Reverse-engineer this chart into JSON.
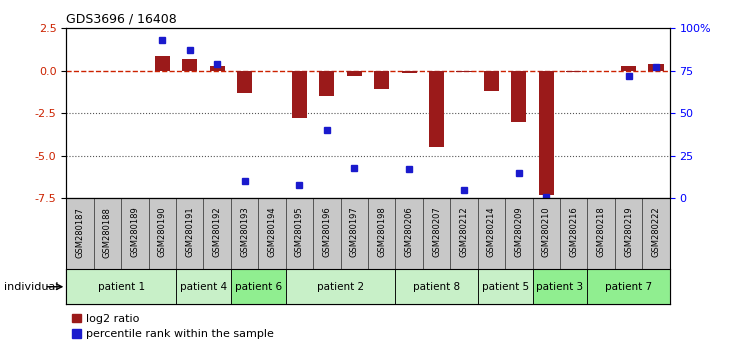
{
  "title": "GDS3696 / 16408",
  "samples": [
    "GSM280187",
    "GSM280188",
    "GSM280189",
    "GSM280190",
    "GSM280191",
    "GSM280192",
    "GSM280193",
    "GSM280194",
    "GSM280195",
    "GSM280196",
    "GSM280197",
    "GSM280198",
    "GSM280206",
    "GSM280207",
    "GSM280212",
    "GSM280214",
    "GSM280209",
    "GSM280210",
    "GSM280216",
    "GSM280218",
    "GSM280219",
    "GSM280222"
  ],
  "log2_ratio": [
    0.0,
    0.0,
    0.0,
    0.9,
    0.7,
    0.3,
    -1.3,
    0.0,
    -2.8,
    -1.5,
    -0.3,
    -1.1,
    -0.15,
    -4.5,
    -0.1,
    -1.2,
    -3.0,
    -7.3,
    -0.1,
    0.0,
    0.3,
    0.4
  ],
  "percentile_rank": [
    null,
    null,
    null,
    93,
    87,
    79,
    10,
    null,
    8,
    40,
    18,
    null,
    17,
    null,
    5,
    null,
    15,
    1,
    null,
    null,
    72,
    77
  ],
  "patients": [
    {
      "label": "patient 1",
      "start": 0,
      "end": 4,
      "color": "#c8f0c8"
    },
    {
      "label": "patient 4",
      "start": 4,
      "end": 6,
      "color": "#c8f0c8"
    },
    {
      "label": "patient 6",
      "start": 6,
      "end": 8,
      "color": "#90ee90"
    },
    {
      "label": "patient 2",
      "start": 8,
      "end": 12,
      "color": "#c8f0c8"
    },
    {
      "label": "patient 8",
      "start": 12,
      "end": 15,
      "color": "#c8f0c8"
    },
    {
      "label": "patient 5",
      "start": 15,
      "end": 17,
      "color": "#c8f0c8"
    },
    {
      "label": "patient 3",
      "start": 17,
      "end": 19,
      "color": "#90ee90"
    },
    {
      "label": "patient 7",
      "start": 19,
      "end": 22,
      "color": "#90ee90"
    }
  ],
  "ylim": [
    -7.5,
    2.5
  ],
  "yticks_left": [
    -7.5,
    -5.0,
    -2.5,
    0.0,
    2.5
  ],
  "yticks_right": [
    0,
    25,
    50,
    75,
    100
  ],
  "bar_color_red": "#9b1a1a",
  "bar_color_blue": "#1a1acd",
  "zero_line_color": "#cc2200",
  "dot_grid_color": "#555555",
  "bg_color": "#ffffff",
  "xlabel_bg": "#c8c8c8",
  "patient_row_bg": "#b8b8b8"
}
